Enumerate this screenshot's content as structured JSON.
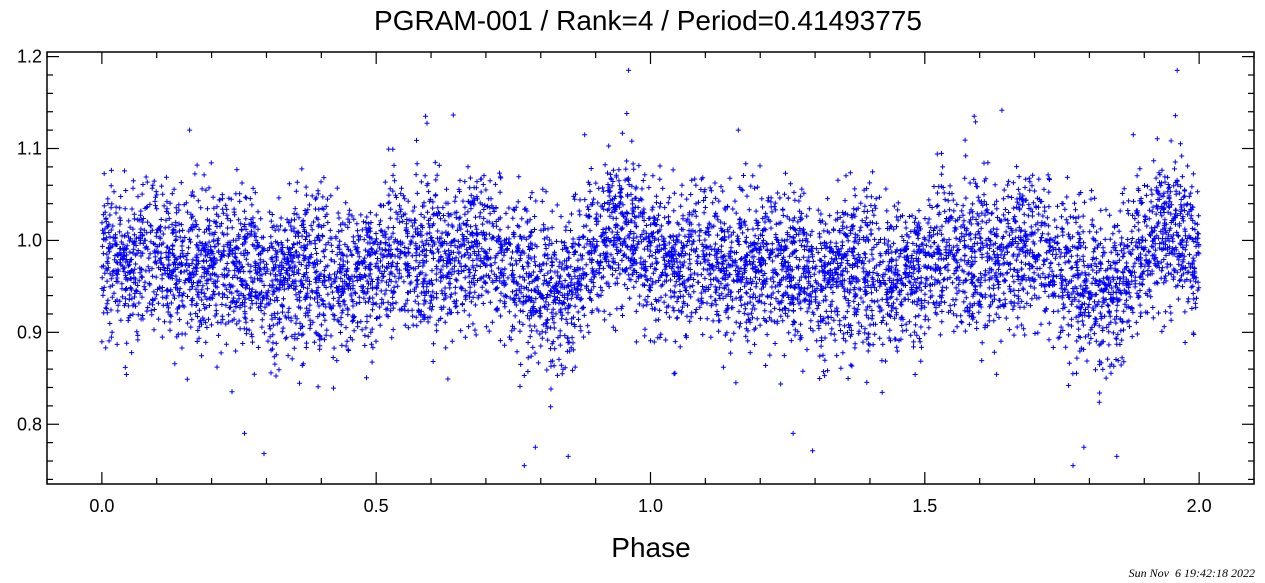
{
  "chart_data": {
    "type": "scatter",
    "title": "PGRAM-001 / Rank=4 / Period=0.41493775",
    "xlabel": "Phase",
    "ylabel": "",
    "xlim": [
      -0.1,
      2.1
    ],
    "ylim": [
      0.735,
      1.205
    ],
    "xticks": [
      0.0,
      0.5,
      1.0,
      1.5,
      2.0
    ],
    "xtick_labels": [
      "0.0",
      "0.5",
      "1.0",
      "1.5",
      "2.0"
    ],
    "yticks": [
      0.8,
      0.9,
      1.0,
      1.1,
      1.2
    ],
    "ytick_labels": [
      "0.8",
      "0.9",
      "1.0",
      "1.1",
      "1.2"
    ],
    "grid": false,
    "marker": "+",
    "marker_color": "#0000ff",
    "series": [
      {
        "x": [
          0.0,
          0.02,
          0.04,
          0.06,
          0.08,
          0.1,
          0.12,
          0.14,
          0.16,
          0.18,
          0.2,
          0.22,
          0.24,
          0.26,
          0.28,
          0.3,
          0.32,
          0.34,
          0.36,
          0.38,
          0.4,
          0.42,
          0.44,
          0.46,
          0.48,
          0.5,
          0.52,
          0.54,
          0.56,
          0.58,
          0.6,
          0.62,
          0.64,
          0.66,
          0.68,
          0.7,
          0.72,
          0.74,
          0.76,
          0.78,
          0.8,
          0.82,
          0.84,
          0.86,
          0.88,
          0.9,
          0.92,
          0.94,
          0.96,
          0.98,
          1.0,
          1.02,
          1.04,
          1.06,
          1.08,
          1.1,
          1.12,
          1.14,
          1.16,
          1.18,
          1.2,
          1.22,
          1.24,
          1.26,
          1.28,
          1.3,
          1.32,
          1.34,
          1.36,
          1.38,
          1.4,
          1.42,
          1.44,
          1.46,
          1.48,
          1.5,
          1.52,
          1.54,
          1.56,
          1.58,
          1.6,
          1.62,
          1.64,
          1.66,
          1.68,
          1.7,
          1.72,
          1.74,
          1.76,
          1.78,
          1.8,
          1.82,
          1.84,
          1.86,
          1.88,
          1.9,
          1.92,
          1.94,
          1.96,
          1.98,
          2.0
        ],
        "y": [
          0.99,
          0.98,
          0.975,
          0.975,
          0.98,
          0.985,
          0.975,
          0.97,
          0.975,
          0.975,
          0.975,
          0.975,
          0.97,
          0.965,
          0.96,
          0.96,
          0.955,
          0.96,
          0.965,
          0.97,
          0.965,
          0.96,
          0.955,
          0.955,
          0.96,
          0.975,
          0.99,
          0.985,
          0.98,
          0.985,
          0.985,
          0.98,
          0.985,
          0.99,
          0.995,
          0.995,
          0.98,
          0.975,
          0.965,
          0.955,
          0.945,
          0.94,
          0.945,
          0.95,
          0.97,
          0.985,
          1.0,
          1.01,
          1.005,
          1.0,
          0.99,
          0.98,
          0.975,
          0.975,
          0.98,
          0.985,
          0.975,
          0.97,
          0.975,
          0.975,
          0.975,
          0.975,
          0.97,
          0.965,
          0.96,
          0.96,
          0.955,
          0.96,
          0.965,
          0.97,
          0.965,
          0.96,
          0.955,
          0.955,
          0.96,
          0.975,
          0.99,
          0.985,
          0.98,
          0.985,
          0.985,
          0.98,
          0.985,
          0.99,
          0.995,
          0.995,
          0.98,
          0.975,
          0.965,
          0.955,
          0.945,
          0.94,
          0.945,
          0.95,
          0.97,
          0.985,
          1.0,
          1.01,
          1.005,
          1.0,
          0.99
        ],
        "scatter_width": 0.04
      }
    ],
    "extreme_points": [
      {
        "x": 0.96,
        "y": 1.185
      },
      {
        "x": 1.96,
        "y": 1.185
      },
      {
        "x": 0.59,
        "y": 1.135
      },
      {
        "x": 1.59,
        "y": 1.135
      },
      {
        "x": 0.16,
        "y": 1.12
      },
      {
        "x": 1.16,
        "y": 1.12
      },
      {
        "x": 0.88,
        "y": 1.115
      },
      {
        "x": 1.88,
        "y": 1.115
      },
      {
        "x": 0.26,
        "y": 0.79
      },
      {
        "x": 1.26,
        "y": 0.79
      },
      {
        "x": 0.77,
        "y": 0.755
      },
      {
        "x": 1.77,
        "y": 0.755
      },
      {
        "x": 0.85,
        "y": 0.765
      },
      {
        "x": 1.85,
        "y": 0.765
      },
      {
        "x": 0.79,
        "y": 0.775
      },
      {
        "x": 1.79,
        "y": 0.775
      }
    ]
  },
  "timestamp": "Sun Nov  6 19:42:18 2022"
}
